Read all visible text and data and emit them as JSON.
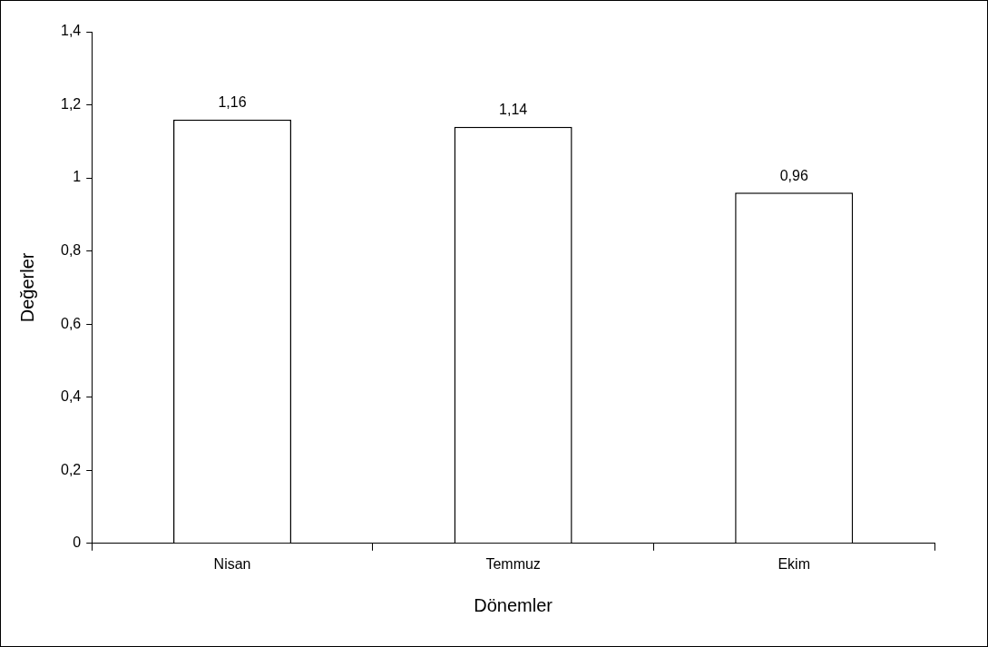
{
  "chart_data": {
    "type": "bar",
    "xlabel": "Dönemler",
    "ylabel": "Değerler",
    "categories": [
      "Nisan",
      "Temmuz",
      "Ekim"
    ],
    "values": [
      1.16,
      1.14,
      0.96
    ],
    "value_labels": [
      "1,16",
      "1,14",
      "0,96"
    ],
    "color": "#ffffff",
    "ylim": [
      0,
      1.4
    ],
    "yticks": [
      0,
      {
        "value": 0.2,
        "label": "0,2"
      },
      {
        "value": 0.4,
        "label": "0,4"
      },
      {
        "value": 0.6,
        "label": "0,6"
      },
      {
        "value": 0.8,
        "label": "0,8"
      },
      1,
      {
        "value": 1.2,
        "label": "1,2"
      },
      {
        "value": 1.4,
        "label": "1,4"
      }
    ],
    "grid": false,
    "legend": false
  }
}
